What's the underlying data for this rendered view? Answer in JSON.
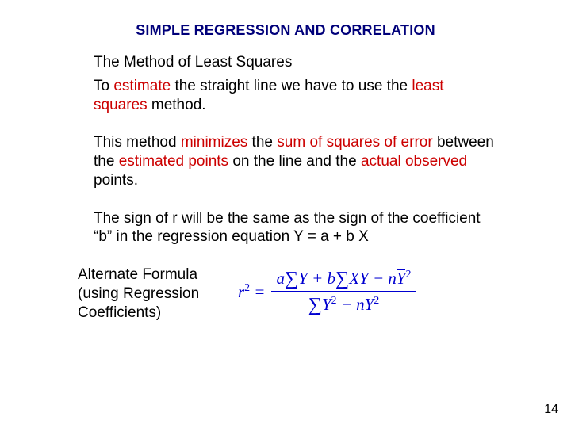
{
  "title": "SIMPLE REGRESSION AND CORRELATION",
  "heading": "The Method of Least Squares",
  "p1": {
    "t1": "To ",
    "r1": "estimate",
    "t2": " the straight line we have to use the ",
    "r2": "least squares",
    "t3": " method."
  },
  "p2": {
    "t1": "This method ",
    "r1": "minimizes",
    "t2": " the ",
    "r2": "sum of squares of error",
    "t3": " between the ",
    "r3": "estimated points",
    "t4": " on the line and the ",
    "r4": "actual observed",
    "t5": " points."
  },
  "p3": "The sign of r will be the same as the sign of the coefficient “b” in the regression equation Y = a + b X",
  "altLabel": "Alternate Formula (using Regression Coefficients)",
  "formula": {
    "lhs_base": "r",
    "lhs_exp": "2",
    "eq": " = ",
    "num": {
      "a": "a",
      "sumY": "Y",
      "plus1": " + ",
      "b": "b",
      "sumXY": "XY",
      "minus": " − ",
      "n": "n",
      "ybar": "Y",
      "exp": "2"
    },
    "den": {
      "sumY2_base": "Y",
      "sumY2_exp": "2",
      "minus": " − ",
      "n": "n",
      "ybar": "Y",
      "exp": "2"
    }
  },
  "pageNumber": "14",
  "colors": {
    "title": "#00007a",
    "emphasis": "#cc0000",
    "formula": "#0000d0",
    "text": "#000000",
    "background": "#ffffff"
  },
  "fontsizes": {
    "title": 18,
    "body": 19,
    "formula": 21,
    "pagenum": 16
  }
}
